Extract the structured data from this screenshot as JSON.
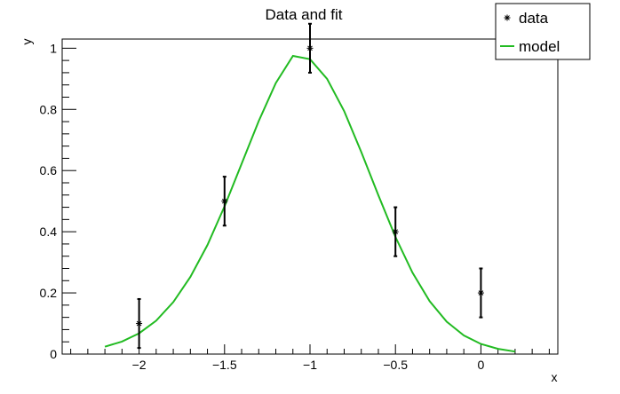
{
  "chart_data": {
    "type": "scatter",
    "title": "Data and fit",
    "xlabel": "x",
    "ylabel": "y",
    "xlim": [
      -2.45,
      0.45
    ],
    "ylim": [
      0,
      1.03
    ],
    "grid": false,
    "legend_position": "top-right",
    "x_ticks": [
      -2,
      -1.5,
      -1,
      -0.5,
      0
    ],
    "x_tick_labels": [
      "−2",
      "−1.5",
      "−1",
      "−0.5",
      "0"
    ],
    "y_ticks": [
      0,
      0.2,
      0.4,
      0.6,
      0.8,
      1
    ],
    "y_tick_labels": [
      "0",
      "0.2",
      "0.4",
      "0.6",
      "0.8",
      "1"
    ],
    "series": [
      {
        "name": "data",
        "kind": "points-with-errors",
        "color": "#000000",
        "x": [
          -2,
          -1.5,
          -1,
          -0.5,
          0
        ],
        "y": [
          0.1,
          0.5,
          1.0,
          0.4,
          0.2
        ],
        "yerr": [
          0.08,
          0.08,
          0.08,
          0.08,
          0.08
        ]
      },
      {
        "name": "model",
        "kind": "line",
        "color": "#22bb22",
        "x": [
          -2.2,
          -2.1,
          -2.0,
          -1.9,
          -1.8,
          -1.7,
          -1.6,
          -1.5,
          -1.4,
          -1.3,
          -1.2,
          -1.1,
          -1.0,
          -0.9,
          -0.8,
          -0.7,
          -0.6,
          -0.5,
          -0.4,
          -0.3,
          -0.2,
          -0.1,
          0.0,
          0.1,
          0.2
        ],
        "y": [
          0.024,
          0.041,
          0.068,
          0.109,
          0.17,
          0.252,
          0.357,
          0.483,
          0.622,
          0.762,
          0.886,
          0.975,
          0.964,
          0.9,
          0.794,
          0.661,
          0.519,
          0.383,
          0.266,
          0.173,
          0.106,
          0.061,
          0.033,
          0.017,
          0.008
        ]
      }
    ]
  }
}
